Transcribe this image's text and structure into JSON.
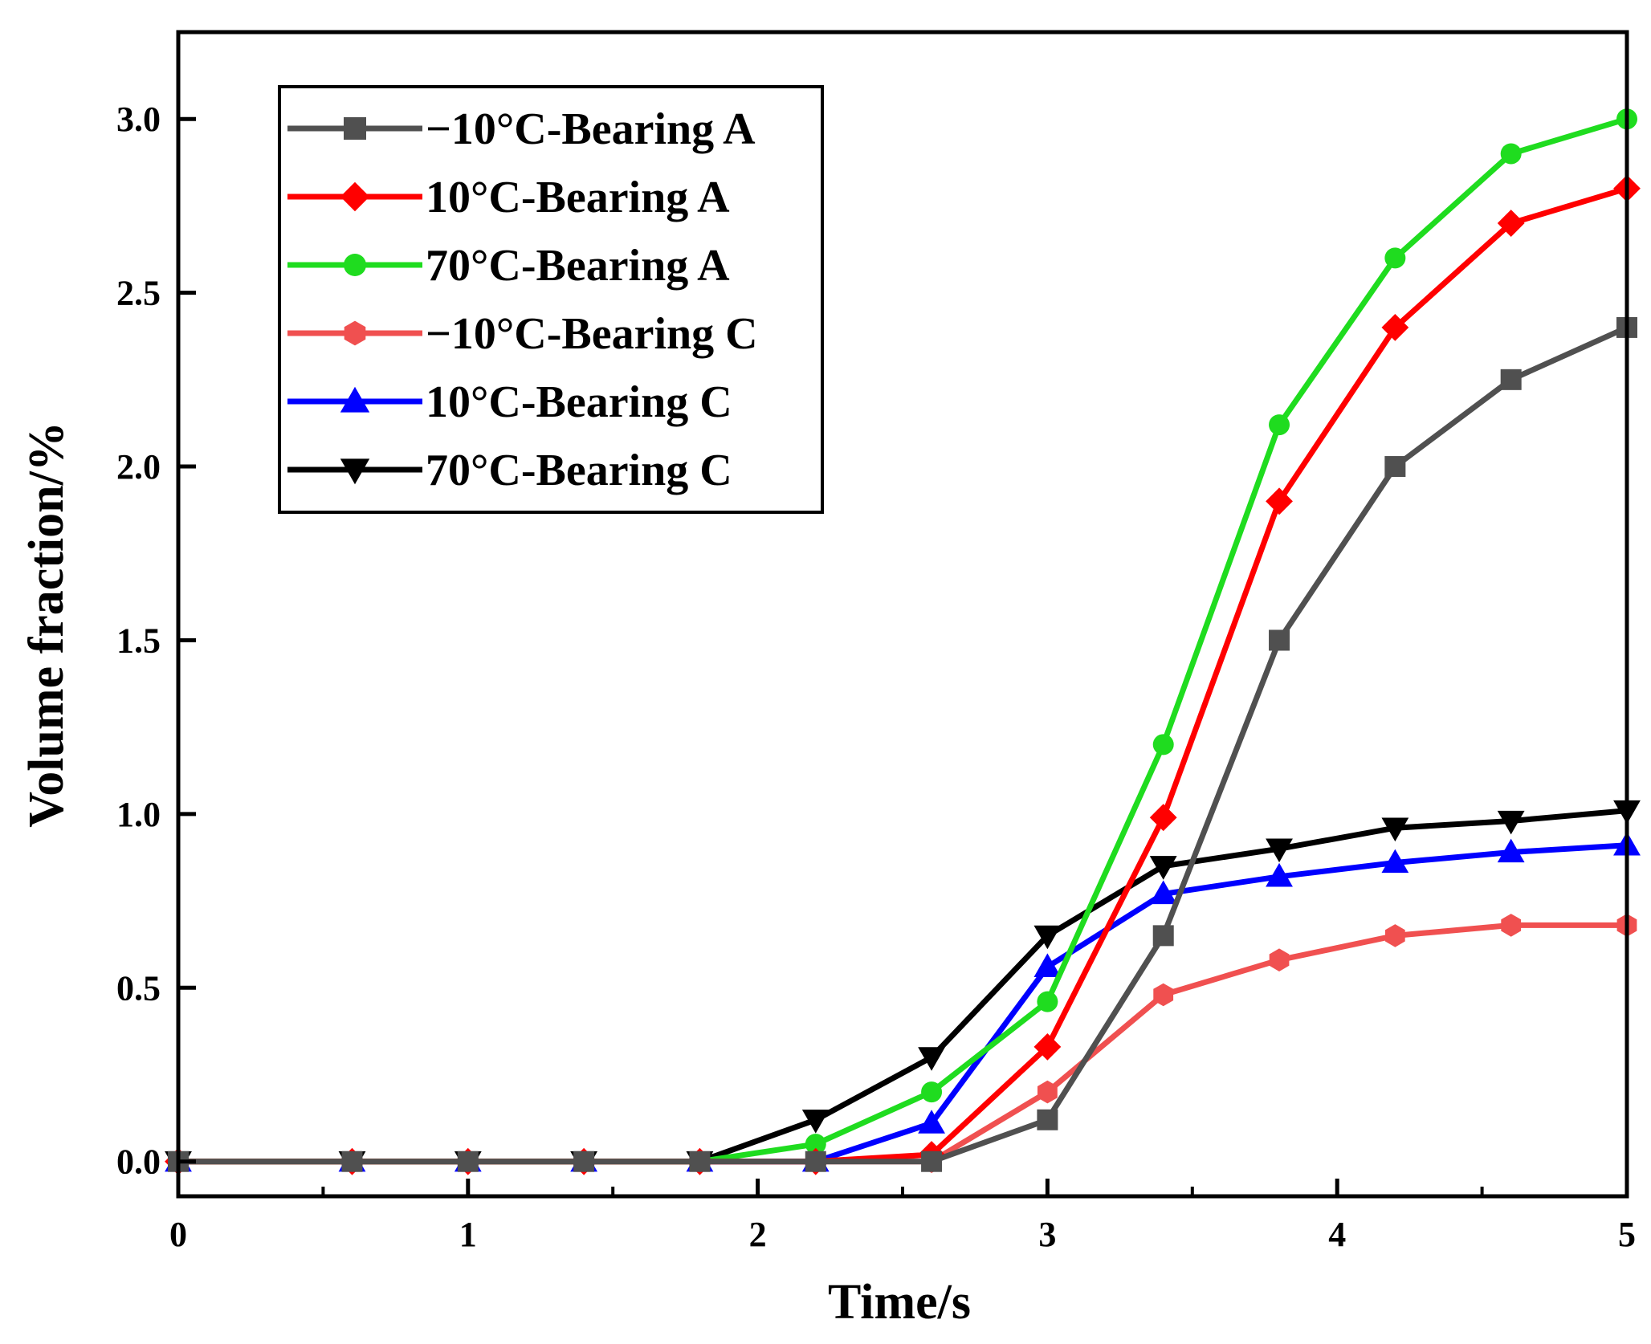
{
  "chart_data": {
    "type": "line",
    "title": "",
    "xlabel": "Time/s",
    "ylabel": "Volume fraction/%",
    "xlim": [
      0,
      5
    ],
    "ylim": [
      -0.1,
      3.25
    ],
    "xticks": [
      0,
      1,
      2,
      3,
      4,
      5
    ],
    "xtick_labels": [
      "0",
      "1",
      "2",
      "3",
      "4",
      "5"
    ],
    "yticks": [
      0.0,
      0.5,
      1.0,
      1.5,
      2.0,
      2.5,
      3.0
    ],
    "ytick_labels": [
      "0.0",
      "0.5",
      "1.0",
      "1.5",
      "2.0",
      "2.5",
      "3.0"
    ],
    "grid": false,
    "legend_position": "top-left",
    "series": [
      {
        "name": "−10°C-Bearing A",
        "color": "#505050",
        "marker": "square",
        "x": [
          0,
          0.6,
          1.0,
          1.4,
          1.8,
          2.2,
          2.6,
          3.0,
          3.4,
          3.8,
          4.2,
          4.6,
          5.0
        ],
        "y": [
          0,
          0,
          0,
          0,
          0,
          0,
          0,
          0.12,
          0.65,
          1.5,
          2.0,
          2.25,
          2.4
        ]
      },
      {
        "name": "10°C-Bearing A",
        "color": "#ff0000",
        "marker": "diamond",
        "x": [
          0,
          0.6,
          1.0,
          1.4,
          1.8,
          2.2,
          2.6,
          3.0,
          3.4,
          3.8,
          4.2,
          4.6,
          5.0
        ],
        "y": [
          0,
          0,
          0,
          0,
          0,
          0,
          0.02,
          0.33,
          0.99,
          1.9,
          2.4,
          2.7,
          2.8
        ]
      },
      {
        "name": "70°C-Bearing A",
        "color": "#1fdc1f",
        "marker": "circle",
        "x": [
          0,
          0.6,
          1.0,
          1.4,
          1.8,
          2.2,
          2.6,
          3.0,
          3.4,
          3.8,
          4.2,
          4.6,
          5.0
        ],
        "y": [
          0,
          0,
          0,
          0,
          0,
          0.05,
          0.2,
          0.46,
          1.2,
          2.12,
          2.6,
          2.9,
          3.0
        ]
      },
      {
        "name": "−10°C-Bearing C",
        "color": "#f05050",
        "marker": "hexagon",
        "x": [
          0,
          0.6,
          1.0,
          1.4,
          1.8,
          2.2,
          2.6,
          3.0,
          3.4,
          3.8,
          4.2,
          4.6,
          5.0
        ],
        "y": [
          0,
          0,
          0,
          0,
          0,
          0,
          0,
          0.2,
          0.48,
          0.58,
          0.65,
          0.68,
          0.68
        ]
      },
      {
        "name": "10°C-Bearing C",
        "color": "#0000ff",
        "marker": "triangle-up",
        "x": [
          0,
          0.6,
          1.0,
          1.4,
          1.8,
          2.2,
          2.6,
          3.0,
          3.4,
          3.8,
          4.2,
          4.6,
          5.0
        ],
        "y": [
          0,
          0,
          0,
          0,
          0,
          0,
          0.11,
          0.56,
          0.77,
          0.82,
          0.86,
          0.89,
          0.91
        ]
      },
      {
        "name": "70°C-Bearing C",
        "color": "#000000",
        "marker": "triangle-down",
        "x": [
          0,
          0.6,
          1.0,
          1.4,
          1.8,
          2.2,
          2.6,
          3.0,
          3.4,
          3.8,
          4.2,
          4.6,
          5.0
        ],
        "y": [
          0,
          0,
          0,
          0,
          0,
          0.12,
          0.3,
          0.65,
          0.85,
          0.9,
          0.96,
          0.98,
          1.01
        ]
      }
    ]
  }
}
